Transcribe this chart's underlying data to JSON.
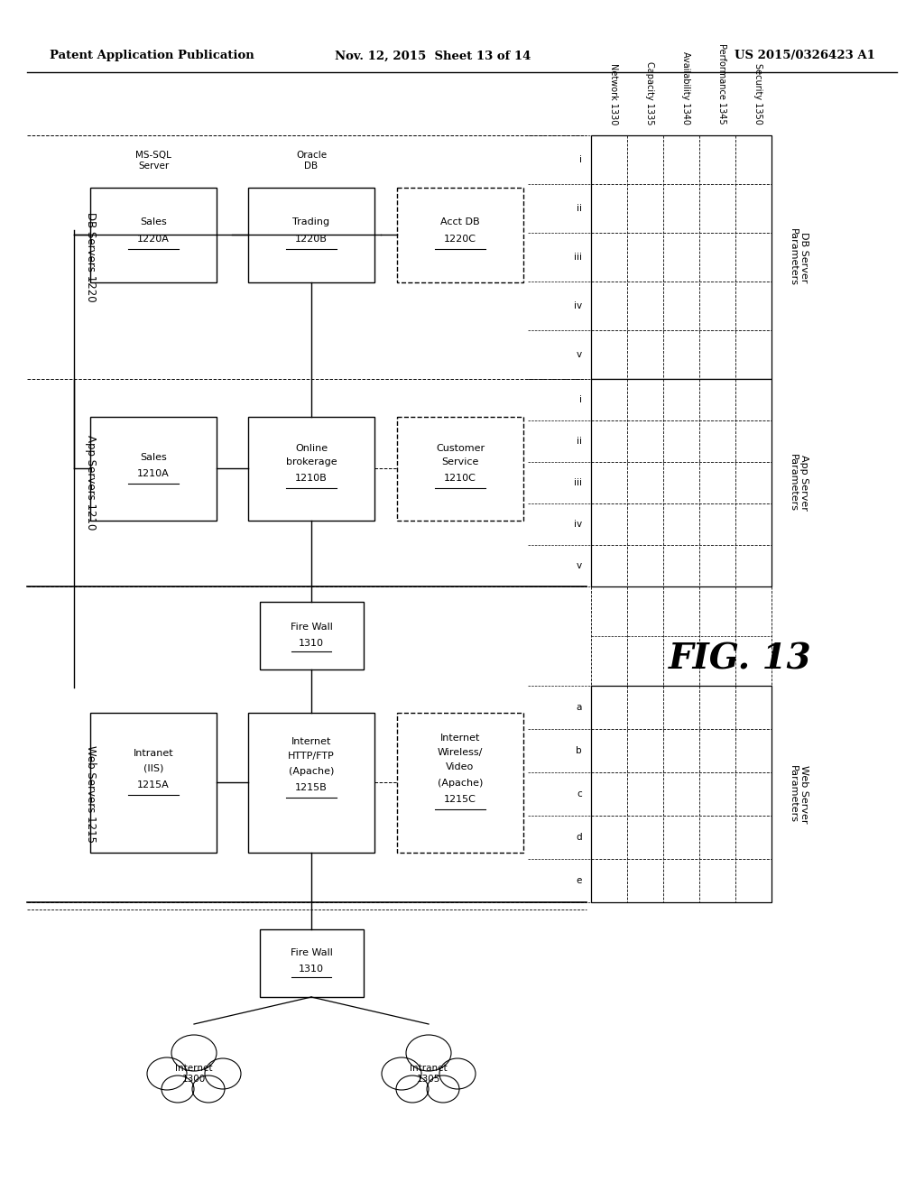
{
  "header_left": "Patent Application Publication",
  "header_mid": "Nov. 12, 2015  Sheet 13 of 14",
  "header_right": "US 2015/0326423 A1",
  "fig_label": "FIG. 13",
  "bg_color": "#ffffff",
  "text_color": "#000000",
  "param_col_labels": [
    "Network 1330",
    "Capacity 1335",
    "Availability 1340",
    "Performance 1345",
    "Security 1350"
  ],
  "db_group_label": "DB Servers 1220",
  "app_group_label": "App Servers 1210",
  "web_group_label": "Web Servers 1215",
  "db_boxes": [
    {
      "label": "Sales\n1220A",
      "underline": true
    },
    {
      "label": "Trading\n1220B",
      "underline": true
    },
    {
      "label": "Acct DB\n1220C",
      "underline": true
    }
  ],
  "db_above_labels": [
    "MS-SQL\nServer",
    "",
    "Oracle\nDB",
    "",
    ""
  ],
  "app_boxes": [
    {
      "label": "Sales\n1210A",
      "underline": true
    },
    {
      "label": "Online\nbrokerage\n1210B",
      "underline": true
    },
    {
      "label": "Customer\nService\n1210C",
      "underline": true
    }
  ],
  "web_boxes": [
    {
      "label": "Intranet\n(IIS)\n1215A",
      "underline": true
    },
    {
      "label": "Internet\nHTTP/FTP\n(Apache)\n1215B",
      "underline": true
    },
    {
      "label": "Internet\nWireless/\nVideo\n(Apache)\n1215C",
      "underline": true
    }
  ],
  "fw_label": "Fire Wall\n1310",
  "fw2_label": "Fire Wall\n1310",
  "internet_label": "Internet\n1300",
  "intranet_label": "Intranet\n1305",
  "db_param_row_labels": [
    "i",
    "ii",
    "iii",
    "iv",
    "v"
  ],
  "app_param_row_labels": [
    "i",
    "ii",
    "iii",
    "iv",
    "v"
  ],
  "web_param_row_labels": [
    "a",
    "b",
    "c",
    "d",
    "e"
  ],
  "db_server_params_label": "DB Server\nParameters",
  "app_server_params_label": "App Server\nParameters",
  "web_server_params_label": "Web Server\nParameters"
}
